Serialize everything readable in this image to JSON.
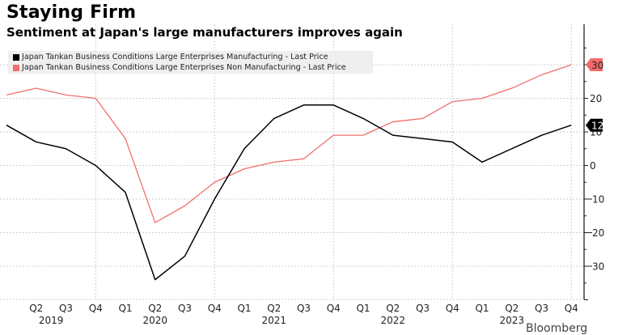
{
  "header": {
    "title": "Staying Firm",
    "subtitle": "Sentiment at Japan's large manufacturers improves again"
  },
  "watermark": "Bloomberg",
  "chart_data": {
    "type": "line",
    "title": "Staying Firm",
    "subtitle": "Sentiment at Japan's large manufacturers improves again",
    "xlabel": "",
    "ylabel": "",
    "x": [
      "Q1 2019",
      "Q2 2019",
      "Q3 2019",
      "Q4 2019",
      "Q1 2020",
      "Q2 2020",
      "Q3 2020",
      "Q4 2020",
      "Q1 2021",
      "Q2 2021",
      "Q3 2021",
      "Q4 2021",
      "Q1 2022",
      "Q2 2022",
      "Q3 2022",
      "Q4 2022",
      "Q1 2023",
      "Q2 2023",
      "Q3 2023",
      "Q4 2023"
    ],
    "x_tick_labels": [
      "",
      "Q2",
      "Q3",
      "Q4",
      "Q1",
      "Q2",
      "Q3",
      "Q4",
      "Q1",
      "Q2",
      "Q3",
      "Q4",
      "Q1",
      "Q2",
      "Q3",
      "Q4",
      "Q1",
      "Q2",
      "Q3",
      "Q4"
    ],
    "year_labels": [
      {
        "label": "2019",
        "at_index": 1.5
      },
      {
        "label": "2020",
        "at_index": 5
      },
      {
        "label": "2021",
        "at_index": 9
      },
      {
        "label": "2022",
        "at_index": 13
      },
      {
        "label": "2023",
        "at_index": 17
      }
    ],
    "series": [
      {
        "name": "Japan Tankan Business Conditions Large Enterprises Manufacturing - Last Price",
        "color": "#000000",
        "values": [
          12,
          7,
          5,
          0,
          -8,
          -34,
          -27,
          -10,
          5,
          14,
          18,
          18,
          14,
          9,
          8,
          7,
          1,
          5,
          9,
          12
        ],
        "last_value_label": "12"
      },
      {
        "name": "Japan Tankan Business Conditions Large Enterprises Non Manufacturing - Last Price",
        "color": "#f06e6e",
        "values": [
          21,
          23,
          21,
          20,
          8,
          -17,
          -12,
          -5,
          -1,
          1,
          2,
          9,
          9,
          13,
          14,
          19,
          20,
          23,
          27,
          30
        ],
        "last_value_label": "30"
      }
    ],
    "y_ticks": [
      30,
      20,
      10,
      0,
      -10,
      -20,
      -30
    ],
    "y_tick_labels": [
      "30",
      "20",
      "10",
      "0",
      "-10",
      "-20",
      "-30"
    ],
    "ylim": [
      -40,
      35
    ],
    "y_axis_side": "right",
    "grid": true,
    "legend_position": "top-left"
  }
}
